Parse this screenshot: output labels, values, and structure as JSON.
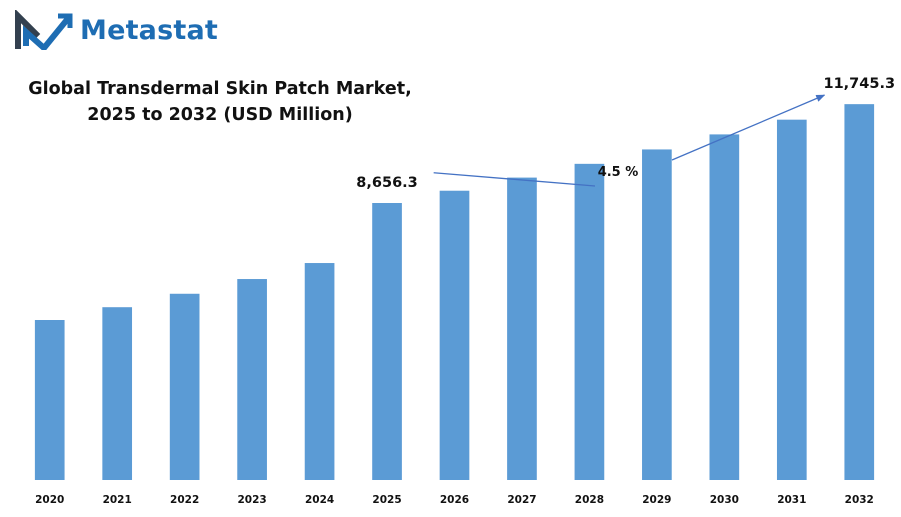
{
  "brand": {
    "name": "Metastat",
    "logo_icon": "metastat-m-icon",
    "color": "#1e6db3"
  },
  "chart_data": {
    "type": "bar",
    "title_lines": [
      "Global Transdermal Skin Patch Market,",
      "2025 to 2032 (USD Million)"
    ],
    "categories": [
      "2020",
      "2021",
      "2022",
      "2023",
      "2024",
      "2025",
      "2026",
      "2027",
      "2028",
      "2029",
      "2030",
      "2031",
      "2032"
    ],
    "values": [
      5000,
      5400,
      5820,
      6280,
      6780,
      8656.3,
      9040,
      9450,
      9880,
      10330,
      10800,
      11260,
      11745.3
    ],
    "data_labels": [
      {
        "category": "2025",
        "text": "8,656.3"
      },
      {
        "category": "2032",
        "text": "11,745.3"
      }
    ],
    "annotation": {
      "text": "4.5 %",
      "from": "2026",
      "to": "2032"
    },
    "xlabel": "",
    "ylabel": "",
    "ylim": [
      0,
      12500
    ],
    "grid": false,
    "legend": "none",
    "bar_color": "#5b9bd5",
    "arrow_color": "#4472c4"
  }
}
